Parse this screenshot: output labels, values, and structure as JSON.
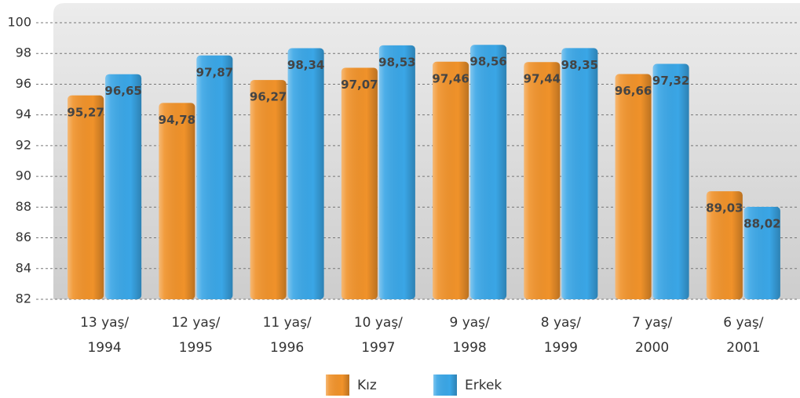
{
  "chart_data": {
    "type": "bar",
    "categories": [
      [
        "13 yaş/",
        "1994"
      ],
      [
        "12 yaş/",
        "1995"
      ],
      [
        "11 yaş/",
        "1996"
      ],
      [
        "10 yaş/",
        "1997"
      ],
      [
        "9 yaş/",
        "1998"
      ],
      [
        "8 yaş/",
        "1999"
      ],
      [
        "7 yaş/",
        "2000"
      ],
      [
        "6 yaş/",
        "2001"
      ]
    ],
    "series": [
      {
        "name": "Kız",
        "color": "#f0922a",
        "values": [
          95.27,
          94.78,
          96.27,
          97.07,
          97.46,
          97.44,
          96.66,
          89.03
        ],
        "value_labels": [
          "95,27",
          "94,78",
          "96,27",
          "97,07",
          "97,46",
          "97,44",
          "96,66",
          "89,03"
        ]
      },
      {
        "name": "Erkek",
        "color": "#3aa6e6",
        "values": [
          96.65,
          97.87,
          98.34,
          98.53,
          98.56,
          98.35,
          97.32,
          88.02
        ],
        "value_labels": [
          "96,65",
          "97,87",
          "98,34",
          "98,53",
          "98,56",
          "98,35",
          "97,32",
          "88,02"
        ]
      }
    ],
    "ylim": [
      82,
      100
    ],
    "yticks": [
      82,
      84,
      86,
      88,
      90,
      92,
      94,
      96,
      98,
      100
    ],
    "grid": true
  }
}
